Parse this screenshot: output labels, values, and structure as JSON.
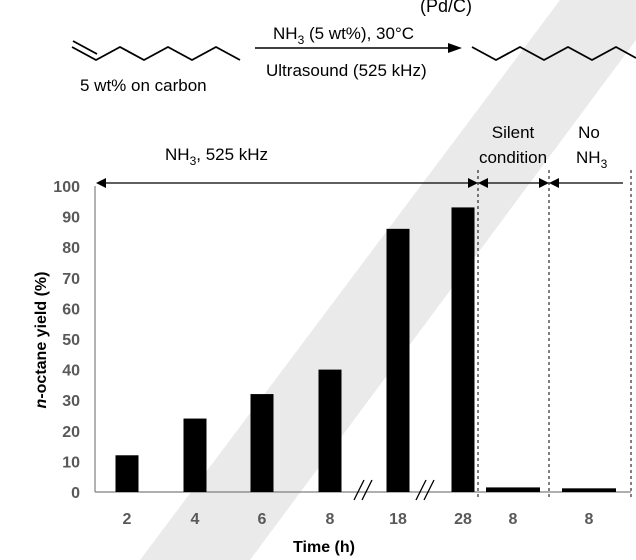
{
  "scheme": {
    "top_fragment": "(Pd/C)",
    "catalyst_note": "5 wt% on carbon",
    "arrow_above": {
      "main": "NH",
      "sub": "3",
      "rest": " (5 wt%), 30°C"
    },
    "arrow_below": "Ultrasound (525 kHz)"
  },
  "regions": {
    "region1": {
      "main": "NH",
      "sub": "3",
      "rest": ", 525 kHz"
    },
    "region2": {
      "line1": "Silent",
      "line2": "condition"
    },
    "region3": {
      "line1": "No",
      "line2_main": "NH",
      "line2_sub": "3"
    }
  },
  "colors": {
    "bar": "#000000",
    "axis": "#7f7f7f",
    "text": "#000000",
    "tick_label": "#595959",
    "watermark": "#d9d9d9"
  },
  "chart_data": {
    "type": "bar",
    "categories": [
      "2",
      "4",
      "6",
      "8",
      "18",
      "28",
      "8",
      "8"
    ],
    "values": [
      12,
      24,
      32,
      40,
      86,
      93,
      1.5,
      1.2
    ],
    "xlabel": "Time (h)",
    "ylabel": {
      "italic": "n",
      "rest": "-octane yield (%)"
    },
    "ylim": [
      0,
      100
    ],
    "yticks": [
      0,
      10,
      20,
      30,
      40,
      50,
      60,
      70,
      80,
      90,
      100
    ],
    "axis_breaks": [
      "between 8 and 18",
      "between 18 and 28"
    ],
    "grid": false,
    "legend": "none"
  }
}
